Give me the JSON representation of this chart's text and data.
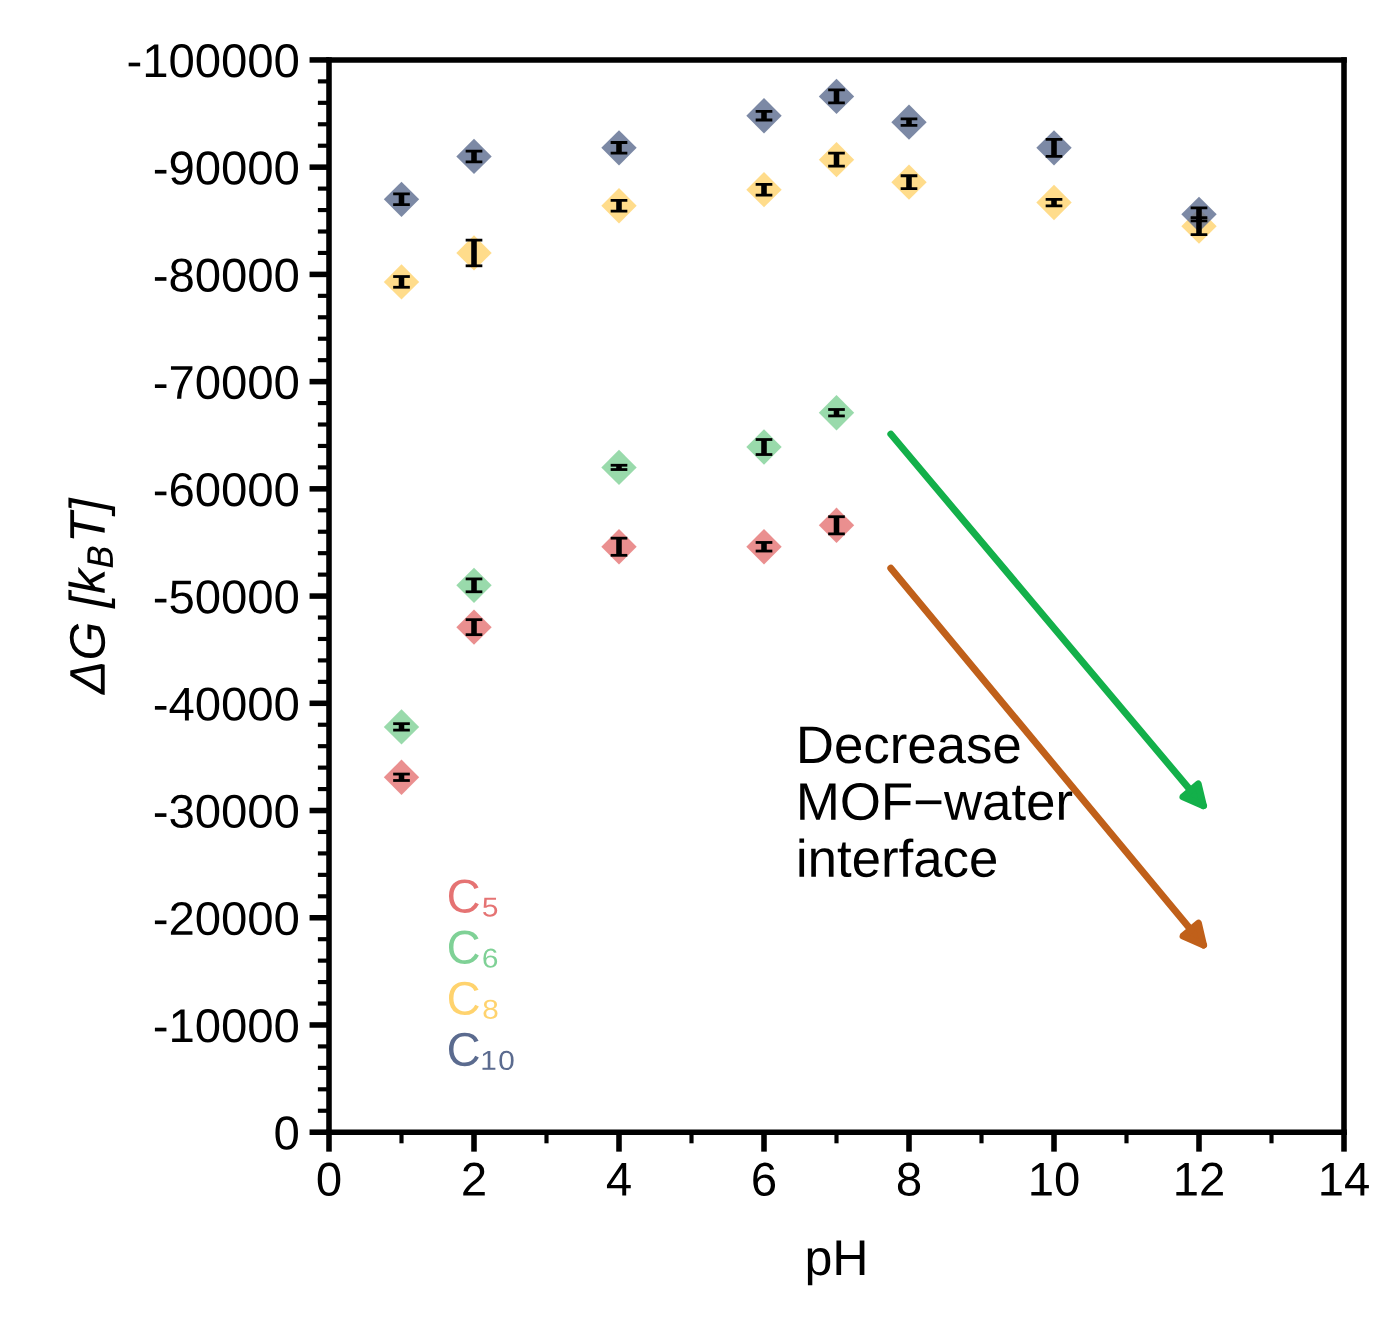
{
  "chart_data": {
    "type": "scatter",
    "xlabel": "pH",
    "ylabel": "ΔG [k$_{B}$T]",
    "x": [
      1,
      2,
      4,
      6,
      7,
      8,
      10,
      12
    ],
    "series": [
      {
        "name": "C₅",
        "color": "#e57373",
        "values": [
          -33100,
          -47100,
          -54600,
          -54600,
          -56600,
          null,
          null,
          null
        ],
        "errors": [
          300,
          700,
          800,
          400,
          800,
          null,
          null,
          null
        ]
      },
      {
        "name": "C₆",
        "color": "#7fd196",
        "values": [
          -37800,
          -51000,
          -62000,
          -63900,
          -67100,
          null,
          null,
          null
        ],
        "errors": [
          300,
          600,
          200,
          700,
          300,
          null,
          null,
          null
        ]
      },
      {
        "name": "C₈",
        "color": "#ffd36e",
        "values": [
          -79300,
          -82000,
          -86400,
          -87900,
          -90700,
          -88600,
          -86700,
          -84500
        ],
        "errors": [
          500,
          1200,
          500,
          500,
          600,
          600,
          300,
          800
        ]
      },
      {
        "name": "C₁₀",
        "color": "#5b6b8f",
        "values": [
          -87000,
          -91000,
          -91800,
          -94800,
          -96600,
          -94200,
          -91800,
          -85600
        ],
        "errors": [
          500,
          500,
          500,
          400,
          600,
          300,
          800,
          600
        ]
      }
    ],
    "xlim": [
      0,
      14
    ],
    "xticks": [
      0,
      2,
      4,
      6,
      8,
      10,
      12,
      14
    ],
    "ylim": [
      0,
      -100000
    ],
    "yticks": [
      0,
      -10000,
      -20000,
      -30000,
      -40000,
      -50000,
      -60000,
      -70000,
      -80000,
      -90000,
      -100000
    ],
    "marker": "diamond",
    "grid": false,
    "legend": "bottom left",
    "annotations": [
      "Decrease\nMOF−water\ninterface"
    ]
  }
}
